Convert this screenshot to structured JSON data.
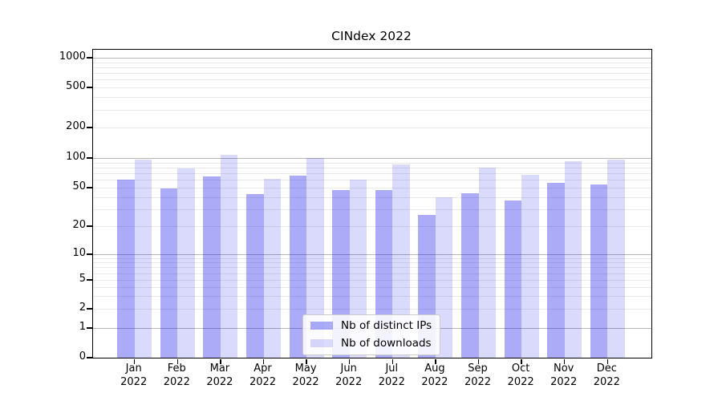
{
  "chart_data": {
    "type": "bar",
    "title": "CINdex 2022",
    "year": "2022",
    "categories": [
      "Jan",
      "Feb",
      "Mar",
      "Apr",
      "May",
      "Jun",
      "Jul",
      "Aug",
      "Sep",
      "Oct",
      "Nov",
      "Dec"
    ],
    "series": [
      {
        "name": "Nb of distinct IPs",
        "color": "rgba(10,10,235,0.34)",
        "color_hex_on_white": "#a8a8f7",
        "values": [
          60,
          49,
          65,
          43,
          66,
          47,
          47,
          26,
          44,
          37,
          56,
          54
        ]
      },
      {
        "name": "Nb of downloads",
        "color": "rgba(10,10,235,0.15)",
        "color_hex_on_white": "#dadafb",
        "values": [
          97,
          78,
          107,
          61,
          100,
          60,
          86,
          40,
          80,
          68,
          93,
          96
        ]
      }
    ],
    "xlabel": "",
    "ylabel": "",
    "yscale": "symlog",
    "ytick_values": [
      0,
      1,
      2,
      5,
      10,
      20,
      50,
      100,
      200,
      500,
      1000
    ],
    "ylim": [
      0,
      1200
    ],
    "grid": true,
    "legend_position": "inside lower center",
    "gridline_major_color": "#b7b7b7",
    "gridline_minor_color": "#e9e9e9"
  }
}
